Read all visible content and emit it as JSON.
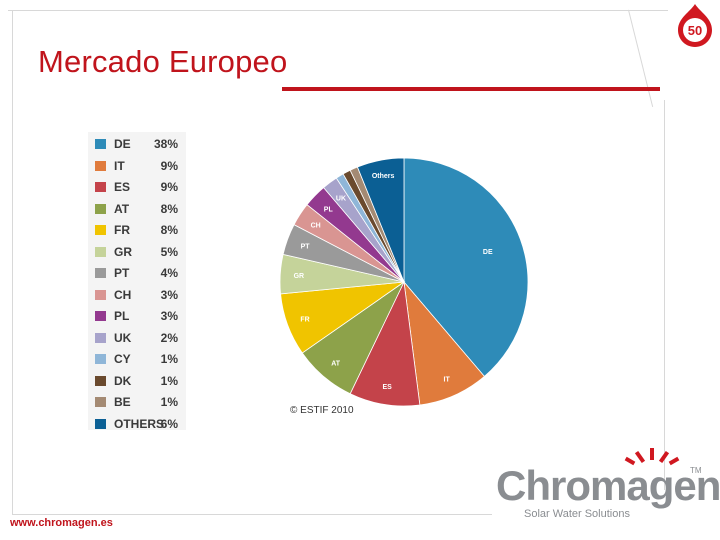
{
  "title": "Mercado Europeo",
  "url": "www.chromagen.es",
  "copyright": "© ESTIF 2010",
  "logo": {
    "name": "Chromagen",
    "tm": "TM",
    "tagline": "Solar Water Solutions",
    "badge_text": "50"
  },
  "colors": {
    "title": "#c0141c",
    "rule": "#c0141c"
  },
  "chart_data": {
    "type": "pie",
    "legend_position": "left",
    "slices": [
      {
        "code": "DE",
        "pct_label": "38%",
        "value": 38,
        "color": "#2e8bb8",
        "pie_label": "DE"
      },
      {
        "code": "IT",
        "pct_label": "9%",
        "value": 9,
        "color": "#e07b3c",
        "pie_label": "IT"
      },
      {
        "code": "ES",
        "pct_label": "9%",
        "value": 9,
        "color": "#c4434a",
        "pie_label": "ES"
      },
      {
        "code": "AT",
        "pct_label": "8%",
        "value": 8,
        "color": "#8da24a",
        "pie_label": "AT"
      },
      {
        "code": "FR",
        "pct_label": "8%",
        "value": 8,
        "color": "#f0c400",
        "pie_label": "FR"
      },
      {
        "code": "GR",
        "pct_label": "5%",
        "value": 5,
        "color": "#c5d39a",
        "pie_label": "GR"
      },
      {
        "code": "PT",
        "pct_label": "4%",
        "value": 4,
        "color": "#9a9a9a",
        "pie_label": "PT"
      },
      {
        "code": "CH",
        "pct_label": "3%",
        "value": 3,
        "color": "#d99592",
        "pie_label": "CH"
      },
      {
        "code": "PL",
        "pct_label": "3%",
        "value": 3,
        "color": "#93398f",
        "pie_label": "PL"
      },
      {
        "code": "UK",
        "pct_label": "2%",
        "value": 2,
        "color": "#a7a3cb",
        "pie_label": "UK"
      },
      {
        "code": "CY",
        "pct_label": "1%",
        "value": 1,
        "color": "#8fb6d8",
        "pie_label": ""
      },
      {
        "code": "DK",
        "pct_label": "1%",
        "value": 1,
        "color": "#6a4a2e",
        "pie_label": ""
      },
      {
        "code": "BE",
        "pct_label": "1%",
        "value": 1,
        "color": "#a48a73",
        "pie_label": ""
      },
      {
        "code": "OTHERS",
        "pct_label": "6%",
        "value": 6,
        "color": "#0b5f94",
        "pie_label": "Others"
      }
    ]
  }
}
